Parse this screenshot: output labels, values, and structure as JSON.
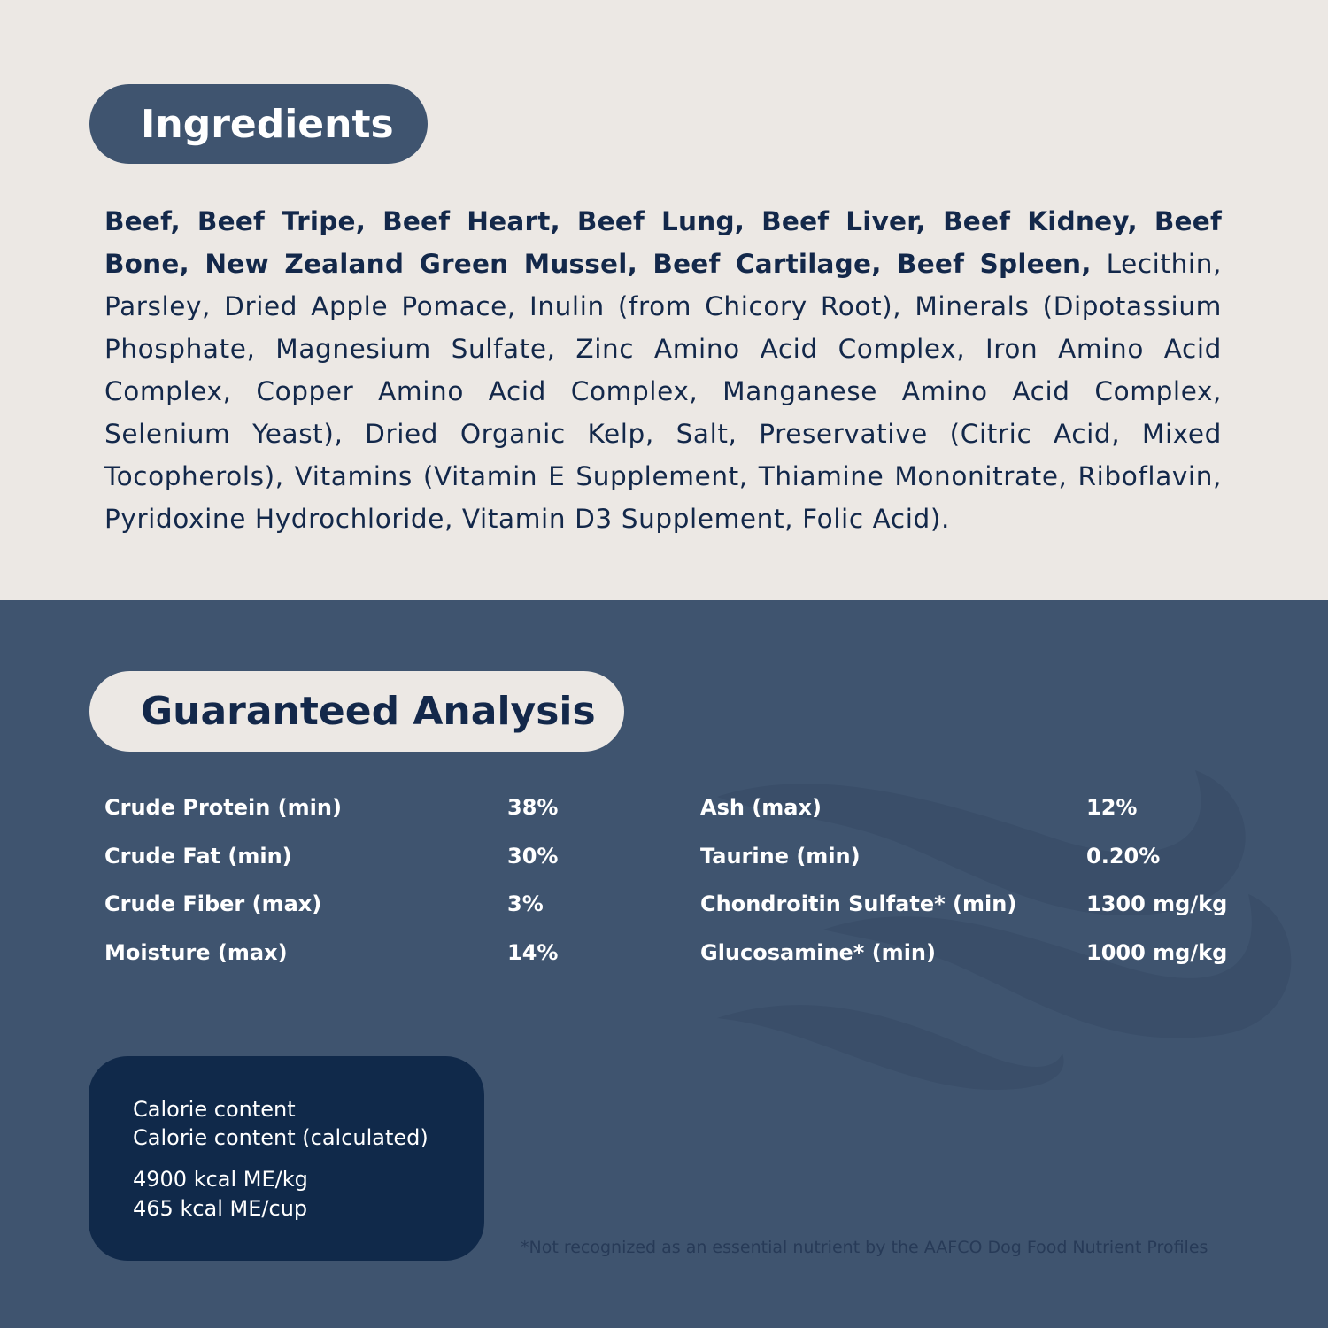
{
  "ingredients": {
    "title": "Ingredients",
    "bold_text": "Beef, Beef Tripe, Beef Heart, Beef Lung, Beef Liver, Beef Kidney, Beef Bone, New Zealand Green Mussel, Beef Cartilage, Beef Spleen,",
    "regular_text": " Lecithin, Parsley, Dried Apple Pomace, Inulin (from Chicory Root), Minerals (Dipotassium Phosphate, Magnesium Sulfate, Zinc Amino Acid Complex, Iron Amino Acid Complex, Copper Amino Acid Complex, Manganese Amino Acid Complex, Selenium Yeast), Dried Organic Kelp, Salt, Preservative (Citric Acid, Mixed Tocopherols), Vitamins (Vitamin E Supplement, Thiamine Mononitrate, Riboflavin, Pyridoxine Hydrochloride, Vitamin D3 Supplement, Folic Acid)."
  },
  "analysis": {
    "title": "Guaranteed Analysis",
    "left": [
      {
        "label": "Crude Protein (min)",
        "value": "38%"
      },
      {
        "label": "Crude Fat (min)",
        "value": "30%"
      },
      {
        "label": "Crude Fiber (max)",
        "value": "3%"
      },
      {
        "label": "Moisture (max)",
        "value": "14%"
      }
    ],
    "right": [
      {
        "label": "Ash (max)",
        "value": "12%"
      },
      {
        "label": "Taurine (min)",
        "value": "0.20%"
      },
      {
        "label": "Chondroitin Sulfate* (min)",
        "value": "1300 mg/kg"
      },
      {
        "label": "Glucosamine* (min)",
        "value": "1000 mg/kg"
      }
    ]
  },
  "calorie": {
    "line1": "Calorie content",
    "line2": "Calorie content (calculated)",
    "value1": "4900 kcal ME/kg",
    "value2": "465 kcal ME/cup"
  },
  "footnote": "*Not recognized as an essential nutrient by the AAFCO Dog Food Nutrient Profiles",
  "colors": {
    "cream": "#ece8e4",
    "slate": "#3f546f",
    "navy": "#10294a",
    "text_dark": "#13284a"
  },
  "decoration": "wave-watermark"
}
